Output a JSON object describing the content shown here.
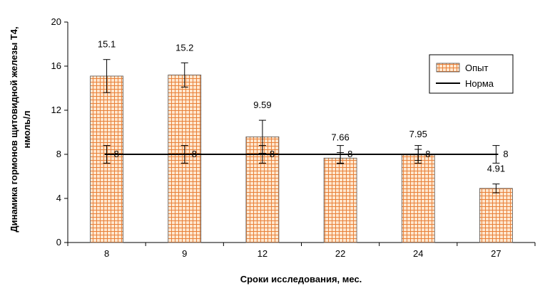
{
  "chart_data": {
    "type": "bar",
    "categories": [
      "8",
      "9",
      "12",
      "22",
      "24",
      "27"
    ],
    "series": [
      {
        "name": "Опыт",
        "kind": "bar",
        "values": [
          15.1,
          15.2,
          9.59,
          7.66,
          7.95,
          4.91
        ],
        "labels": [
          "15.1",
          "15.2",
          "9.59",
          "7.66",
          "7.95",
          "4.91"
        ],
        "error": [
          1.5,
          1.1,
          1.5,
          0.5,
          0.5,
          0.4
        ],
        "pattern_color": "#e8813a",
        "fill_color": "#ffe7cf"
      },
      {
        "name": "Норма",
        "kind": "line",
        "values": [
          8,
          8,
          8,
          8,
          8,
          8
        ],
        "labels": [
          "8",
          "8",
          "8",
          "8",
          "8",
          "8"
        ],
        "error": [
          0.8,
          0.8,
          0.8,
          0.8,
          0.8,
          0.8
        ],
        "color": "#000000"
      }
    ],
    "xlabel": "Сроки исследования, мес.",
    "ylabel_line1": "Динамика гормонов щитовидной железы Т4,",
    "ylabel_line2": "нмоль/л",
    "ylim": [
      0,
      20
    ],
    "yticks": [
      "0",
      "4",
      "8",
      "12",
      "16",
      "20"
    ],
    "legend_position": "right"
  }
}
